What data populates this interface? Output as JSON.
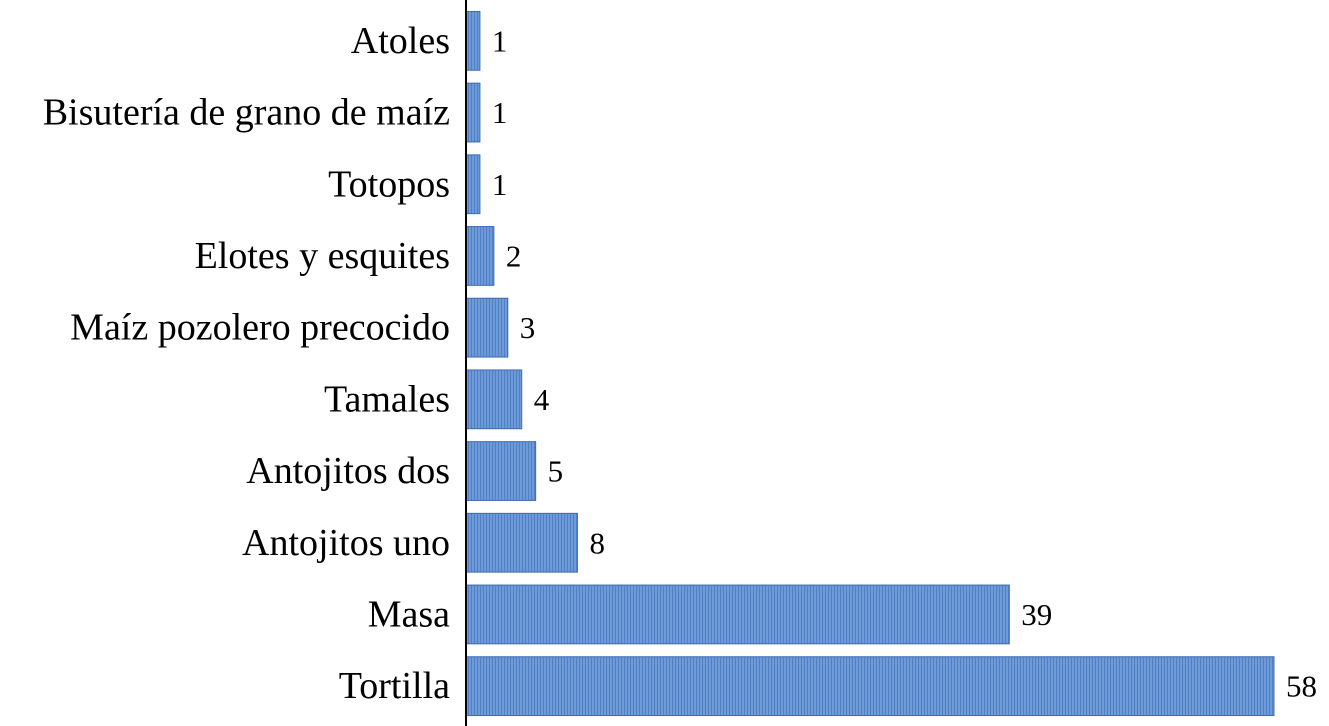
{
  "chart_data": {
    "type": "bar",
    "orientation": "horizontal",
    "categories": [
      "Atoles",
      "Bisutería de grano de maíz",
      "Totopos",
      "Elotes y esquites",
      "Maíz pozolero precocido",
      "Tamales",
      "Antojitos dos",
      "Antojitos uno",
      "Masa",
      "Tortilla"
    ],
    "values": [
      1,
      1,
      1,
      2,
      3,
      4,
      5,
      8,
      39,
      58
    ],
    "title": "",
    "xlabel": "",
    "ylabel": "",
    "xlim": [
      0,
      58
    ],
    "grid": false,
    "legend": "none",
    "data_labels": true,
    "bar_color": "#5b8ad0",
    "bar_stroke": "#3d6bb3",
    "axis_color": "#000000"
  }
}
